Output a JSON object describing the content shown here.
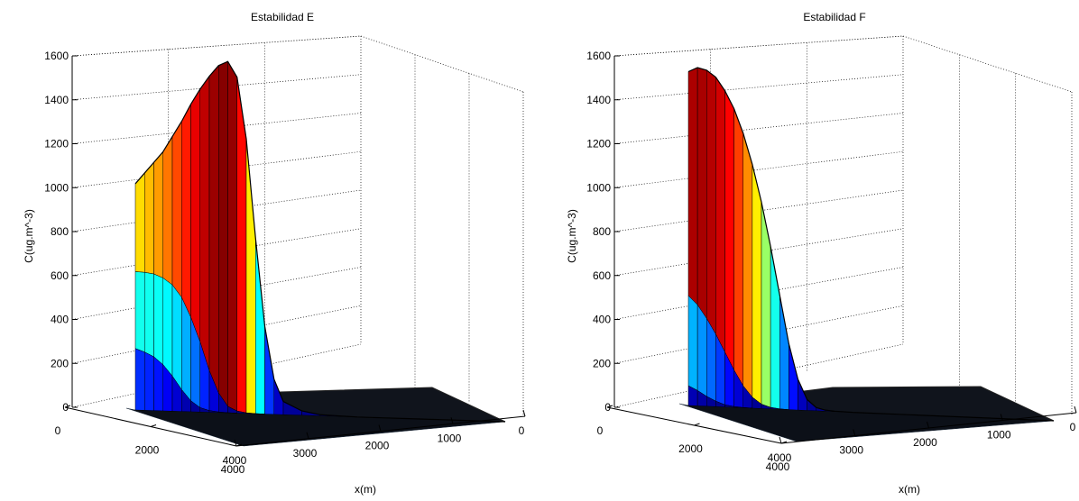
{
  "chart_data": [
    {
      "type": "surface",
      "title": "Estabilidad E",
      "zlabel": "C(ug.m^-3)",
      "xlabel": "x(m)",
      "zlim": [
        0,
        1600
      ],
      "zticks": [
        "0",
        "200",
        "400",
        "600",
        "800",
        "1000",
        "1200",
        "1400",
        "1600"
      ],
      "xticks": [
        "0",
        "1000",
        "2000",
        "3000",
        "4000"
      ],
      "yticks": [
        "0",
        "2000",
        "4000"
      ],
      "grid": true,
      "profile": {
        "x": [
          4000,
          3900,
          3800,
          3700,
          3600,
          3500,
          3400,
          3300,
          3200,
          3100,
          3000,
          2900,
          2800,
          2700,
          2600,
          2500,
          2400,
          2200,
          2000,
          1600,
          1000,
          0
        ],
        "peak_c": [
          1030,
          1080,
          1130,
          1180,
          1250,
          1320,
          1400,
          1470,
          1530,
          1580,
          1600,
          1530,
          1250,
          800,
          400,
          160,
          60,
          20,
          5,
          0,
          0,
          0
        ],
        "mid_c": [
          630,
          628,
          622,
          605,
          575,
          520,
          430,
          320,
          190,
          90,
          30,
          10,
          3,
          1,
          0,
          0,
          0,
          0,
          0,
          0,
          0,
          0
        ],
        "low_c": [
          280,
          265,
          245,
          210,
          160,
          100,
          50,
          20,
          8,
          3,
          1,
          0,
          0,
          0,
          0,
          0,
          0,
          0,
          0,
          0,
          0,
          0
        ]
      }
    },
    {
      "type": "surface",
      "title": "Estabilidad F",
      "zlabel": "C(ug.m^-3)",
      "xlabel": "x(m)",
      "zlim": [
        0,
        1600
      ],
      "zticks": [
        "0",
        "200",
        "400",
        "600",
        "800",
        "1000",
        "1200",
        "1400",
        "1600"
      ],
      "xticks": [
        "0",
        "1000",
        "2000",
        "3000",
        "4000"
      ],
      "yticks": [
        "0",
        "2000",
        "4000"
      ],
      "grid": true,
      "profile": {
        "x": [
          4000,
          3900,
          3800,
          3700,
          3600,
          3500,
          3400,
          3300,
          3200,
          3100,
          3000,
          2900,
          2800,
          2700,
          2600,
          2500,
          2400,
          2200,
          2000,
          1600,
          1000,
          0
        ],
        "peak_c": [
          1520,
          1540,
          1530,
          1500,
          1440,
          1360,
          1250,
          1110,
          940,
          740,
          520,
          300,
          140,
          50,
          15,
          5,
          2,
          0,
          0,
          0,
          0,
          0
        ],
        "mid_c": [
          500,
          460,
          400,
          330,
          250,
          170,
          100,
          50,
          20,
          7,
          2,
          0,
          0,
          0,
          0,
          0,
          0,
          0,
          0,
          0,
          0,
          0
        ],
        "low_c": [
          90,
          70,
          45,
          25,
          10,
          4,
          1,
          0,
          0,
          0,
          0,
          0,
          0,
          0,
          0,
          0,
          0,
          0,
          0,
          0,
          0,
          0
        ]
      }
    }
  ]
}
